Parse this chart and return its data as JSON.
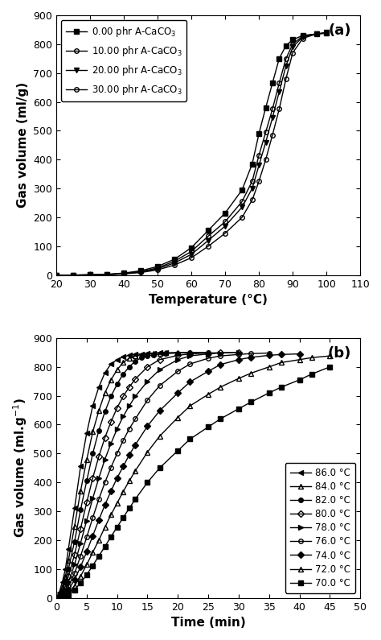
{
  "panel_a": {
    "title": "(a)",
    "xlabel": "Temperature (°C)",
    "ylabel": "Gas volume (ml/g)",
    "xlim": [
      20,
      110
    ],
    "ylim": [
      0,
      900
    ],
    "xticks": [
      20,
      30,
      40,
      50,
      60,
      70,
      80,
      90,
      100,
      110
    ],
    "yticks": [
      0,
      100,
      200,
      300,
      400,
      500,
      600,
      700,
      800,
      900
    ],
    "series": [
      {
        "label": "0.00 phr A-CaCO$_3$",
        "marker": "s",
        "fillstyle": "full",
        "color": "black",
        "linestyle": "-",
        "x": [
          20,
          25,
          30,
          35,
          40,
          45,
          50,
          55,
          60,
          65,
          70,
          75,
          78,
          80,
          82,
          84,
          86,
          88,
          90,
          93,
          97,
          100
        ],
        "y": [
          0,
          0,
          1,
          3,
          7,
          15,
          30,
          55,
          95,
          155,
          215,
          295,
          385,
          490,
          580,
          665,
          750,
          795,
          815,
          830,
          835,
          838
        ]
      },
      {
        "label": "10.00 phr A-CaCO$_3$",
        "marker": "o",
        "fillstyle": "none",
        "color": "black",
        "linestyle": "-",
        "x": [
          20,
          25,
          30,
          35,
          40,
          45,
          50,
          55,
          60,
          65,
          70,
          75,
          78,
          80,
          82,
          84,
          86,
          88,
          90,
          93,
          97,
          100
        ],
        "y": [
          0,
          0,
          1,
          2,
          6,
          12,
          25,
          48,
          82,
          135,
          185,
          255,
          325,
          415,
          495,
          575,
          665,
          750,
          800,
          828,
          835,
          838
        ]
      },
      {
        "label": "20.00 phr A-CaCO$_3$",
        "marker": "v",
        "fillstyle": "full",
        "color": "black",
        "linestyle": "-",
        "x": [
          20,
          25,
          30,
          35,
          40,
          45,
          50,
          55,
          60,
          65,
          70,
          75,
          78,
          80,
          82,
          84,
          86,
          88,
          90,
          93,
          97,
          100
        ],
        "y": [
          0,
          0,
          1,
          2,
          5,
          11,
          22,
          42,
          72,
          120,
          170,
          235,
          300,
          380,
          460,
          545,
          635,
          725,
          790,
          825,
          835,
          840
        ]
      },
      {
        "label": "30.00 phr A-CaCO$_3$",
        "marker": "o",
        "fillstyle": "none",
        "color": "black",
        "linestyle": "-",
        "x": [
          20,
          25,
          30,
          35,
          40,
          45,
          50,
          55,
          60,
          65,
          70,
          75,
          78,
          80,
          82,
          84,
          86,
          88,
          90,
          93,
          97,
          100
        ],
        "y": [
          0,
          0,
          0,
          1,
          4,
          9,
          18,
          35,
          60,
          100,
          145,
          200,
          260,
          325,
          400,
          485,
          575,
          680,
          770,
          820,
          835,
          840
        ]
      }
    ]
  },
  "panel_b": {
    "title": "(b)",
    "xlabel": "Time (min)",
    "ylabel": "Gas volume (ml.g$^{-1}$)",
    "xlim": [
      0,
      50
    ],
    "ylim": [
      0,
      900
    ],
    "xticks": [
      0,
      5,
      10,
      15,
      20,
      25,
      30,
      35,
      40,
      45,
      50
    ],
    "yticks": [
      0,
      100,
      200,
      300,
      400,
      500,
      600,
      700,
      800,
      900
    ],
    "series": [
      {
        "label": "86.0 °C",
        "marker": "<",
        "fillstyle": "full",
        "color": "black",
        "x": [
          0,
          0.5,
          1,
          1.5,
          2,
          3,
          4,
          5,
          6,
          7,
          8,
          9,
          10,
          11,
          12,
          13,
          14,
          15,
          16,
          17,
          18
        ],
        "y": [
          0,
          20,
          55,
          100,
          170,
          310,
          455,
          570,
          665,
          730,
          780,
          810,
          825,
          835,
          840,
          843,
          845,
          847,
          848,
          849,
          850
        ]
      },
      {
        "label": "84.0 °C",
        "marker": "^",
        "fillstyle": "none",
        "color": "black",
        "x": [
          0,
          0.5,
          1,
          1.5,
          2,
          3,
          4,
          5,
          6,
          7,
          8,
          9,
          10,
          11,
          12,
          13,
          14,
          15,
          16,
          17,
          18,
          20,
          22,
          25
        ],
        "y": [
          0,
          12,
          38,
          75,
          130,
          248,
          370,
          478,
          575,
          648,
          710,
          755,
          790,
          815,
          830,
          838,
          842,
          845,
          847,
          848,
          849,
          850,
          850,
          850
        ]
      },
      {
        "label": "82.0 °C",
        "marker": "o",
        "fillstyle": "full",
        "color": "black",
        "x": [
          0,
          0.5,
          1,
          1.5,
          2,
          3,
          4,
          5,
          6,
          7,
          8,
          9,
          10,
          11,
          12,
          13,
          14,
          15,
          16,
          18,
          20,
          22,
          25
        ],
        "y": [
          0,
          8,
          25,
          55,
          100,
          195,
          305,
          405,
          500,
          580,
          645,
          698,
          740,
          775,
          800,
          820,
          832,
          838,
          842,
          846,
          848,
          849,
          850
        ]
      },
      {
        "label": "80.0 °C",
        "marker": "D",
        "fillstyle": "none",
        "color": "black",
        "x": [
          0,
          0.5,
          1,
          1.5,
          2,
          3,
          4,
          5,
          6,
          7,
          8,
          9,
          10,
          11,
          12,
          13,
          15,
          17,
          20,
          22,
          25,
          27,
          30
        ],
        "y": [
          0,
          5,
          18,
          40,
          75,
          150,
          240,
          330,
          415,
          490,
          555,
          610,
          658,
          698,
          730,
          758,
          800,
          825,
          840,
          845,
          848,
          849,
          850
        ]
      },
      {
        "label": "78.0 °C",
        "marker": ">",
        "fillstyle": "full",
        "color": "black",
        "x": [
          0,
          0.5,
          1,
          1.5,
          2,
          3,
          4,
          5,
          6,
          7,
          8,
          9,
          10,
          11,
          12,
          13,
          15,
          17,
          20,
          22,
          25,
          27,
          30
        ],
        "y": [
          0,
          3,
          12,
          28,
          55,
          115,
          190,
          268,
          345,
          415,
          480,
          535,
          585,
          628,
          665,
          698,
          750,
          790,
          825,
          838,
          845,
          848,
          850
        ]
      },
      {
        "label": "76.0 °C",
        "marker": "o",
        "fillstyle": "none",
        "color": "black",
        "x": [
          0,
          0.5,
          1,
          1.5,
          2,
          3,
          4,
          5,
          6,
          7,
          8,
          9,
          10,
          11,
          12,
          13,
          15,
          17,
          20,
          22,
          25,
          27,
          30,
          32,
          35
        ],
        "y": [
          0,
          2,
          8,
          20,
          40,
          85,
          145,
          210,
          278,
          342,
          400,
          452,
          500,
          545,
          585,
          620,
          685,
          735,
          785,
          810,
          830,
          838,
          843,
          846,
          848
        ]
      },
      {
        "label": "74.0 °C",
        "marker": "D",
        "fillstyle": "full",
        "color": "black",
        "x": [
          0,
          0.5,
          1,
          1.5,
          2,
          3,
          4,
          5,
          6,
          7,
          8,
          9,
          10,
          11,
          12,
          13,
          15,
          17,
          20,
          22,
          25,
          27,
          30,
          32,
          35,
          37,
          40
        ],
        "y": [
          0,
          1,
          5,
          13,
          28,
          62,
          108,
          160,
          215,
          270,
          322,
          370,
          415,
          455,
          495,
          530,
          595,
          648,
          710,
          748,
          785,
          808,
          825,
          833,
          840,
          843,
          845
        ]
      },
      {
        "label": "72.0 °C",
        "marker": "^",
        "fillstyle": "none",
        "color": "black",
        "x": [
          0,
          0.5,
          1,
          1.5,
          2,
          3,
          4,
          5,
          6,
          7,
          8,
          9,
          10,
          11,
          12,
          13,
          15,
          17,
          20,
          22,
          25,
          27,
          30,
          32,
          35,
          37,
          40,
          42,
          45
        ],
        "y": [
          0,
          1,
          3,
          8,
          17,
          42,
          75,
          115,
          158,
          200,
          245,
          288,
          328,
          368,
          405,
          440,
          505,
          560,
          625,
          665,
          705,
          730,
          760,
          778,
          800,
          815,
          825,
          832,
          838
        ]
      },
      {
        "label": "70.0 °C",
        "marker": "s",
        "fillstyle": "full",
        "color": "black",
        "x": [
          0,
          0.5,
          1,
          1.5,
          2,
          3,
          4,
          5,
          6,
          7,
          8,
          9,
          10,
          11,
          12,
          13,
          15,
          17,
          20,
          22,
          25,
          27,
          30,
          32,
          35,
          37,
          40,
          42,
          45
        ],
        "y": [
          0,
          0,
          2,
          5,
          10,
          28,
          52,
          80,
          112,
          145,
          178,
          212,
          245,
          278,
          310,
          342,
          400,
          450,
          510,
          550,
          592,
          620,
          655,
          678,
          710,
          730,
          755,
          775,
          800
        ]
      }
    ]
  }
}
